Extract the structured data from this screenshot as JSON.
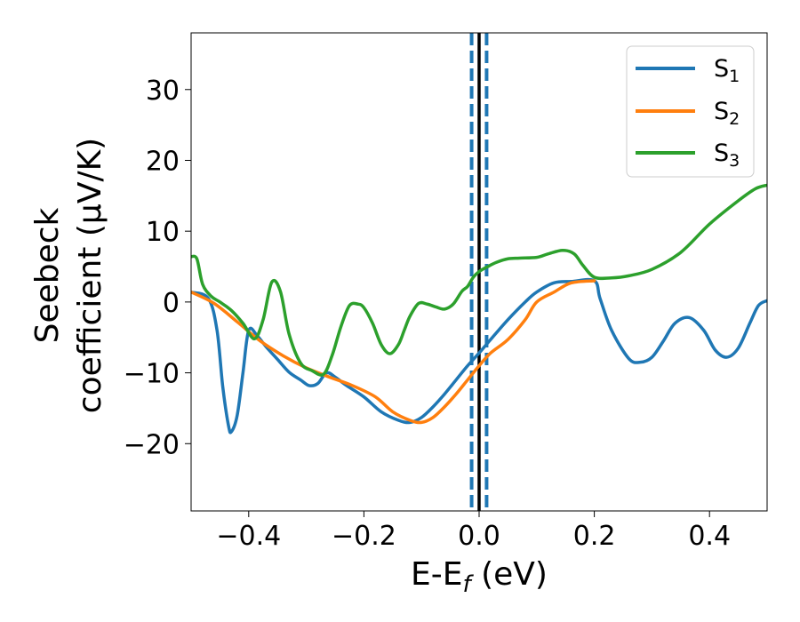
{
  "chart_data": {
    "type": "line",
    "xlabel": {
      "base": "E-E",
      "sub": "f",
      "unit": " (eV)"
    },
    "ylabel": {
      "line1": "Seebeck",
      "line2": "coefficient  (μV/K)"
    },
    "xlim": [
      -0.5,
      0.5
    ],
    "ylim": [
      -29.5,
      38
    ],
    "xticks": [
      -0.4,
      -0.2,
      0.0,
      0.2,
      0.4
    ],
    "xtick_labels": [
      "−0.4",
      "−0.2",
      "0.0",
      "0.2",
      "0.4"
    ],
    "yticks": [
      -20,
      -10,
      0,
      10,
      20,
      30
    ],
    "ytick_labels": [
      "−20",
      "−10",
      "0",
      "10",
      "20",
      "30"
    ],
    "grid": false,
    "legend_position": "top-right",
    "vlines": [
      {
        "x": 0.0,
        "color": "#000000",
        "style": "solid"
      },
      {
        "x": -0.013,
        "color": "#1f77b4",
        "style": "dashed"
      },
      {
        "x": 0.013,
        "color": "#1f77b4",
        "style": "dashed"
      }
    ],
    "series": [
      {
        "name": "S",
        "sub": "1",
        "color": "#1f77b4",
        "x": [
          -0.5,
          -0.47,
          -0.455,
          -0.445,
          -0.435,
          -0.43,
          -0.42,
          -0.41,
          -0.4,
          -0.385,
          -0.37,
          -0.35,
          -0.33,
          -0.31,
          -0.295,
          -0.28,
          -0.265,
          -0.25,
          -0.23,
          -0.2,
          -0.17,
          -0.14,
          -0.12,
          -0.1,
          -0.08,
          -0.06,
          -0.04,
          -0.02,
          0.0,
          0.02,
          0.05,
          0.08,
          0.1,
          0.13,
          0.16,
          0.2,
          0.21,
          0.23,
          0.26,
          0.28,
          0.3,
          0.32,
          0.34,
          0.365,
          0.39,
          0.41,
          0.43,
          0.45,
          0.47,
          0.485,
          0.5
        ],
        "y": [
          1.4,
          0.5,
          -4,
          -12,
          -17.5,
          -18.3,
          -16,
          -10,
          -4,
          -4.8,
          -6.3,
          -8.1,
          -9.9,
          -11,
          -11.8,
          -11.5,
          -10,
          -10.6,
          -11.8,
          -13.4,
          -15.5,
          -16.7,
          -17,
          -16.3,
          -14.8,
          -13,
          -11,
          -9,
          -7.2,
          -5.3,
          -2.5,
          0,
          1.4,
          2.7,
          2.9,
          3.0,
          0.5,
          -4,
          -8,
          -8.5,
          -7.8,
          -5.5,
          -3,
          -2.2,
          -4,
          -6.8,
          -7.8,
          -6.5,
          -3,
          -0.5,
          0.2
        ]
      },
      {
        "name": "S",
        "sub": "2",
        "color": "#ff7f0e",
        "x": [
          -0.5,
          -0.46,
          -0.42,
          -0.38,
          -0.34,
          -0.3,
          -0.26,
          -0.22,
          -0.18,
          -0.15,
          -0.12,
          -0.1,
          -0.08,
          -0.06,
          -0.04,
          -0.02,
          0.0,
          0.02,
          0.05,
          0.08,
          0.1,
          0.13,
          0.16,
          0.2
        ],
        "y": [
          1.4,
          -0.2,
          -2.8,
          -5.5,
          -7.6,
          -9.3,
          -10.6,
          -11.8,
          -13.4,
          -15.5,
          -16.7,
          -17,
          -16.3,
          -14.8,
          -13,
          -11,
          -9,
          -7.2,
          -5.3,
          -2.5,
          0,
          1.4,
          2.7,
          3.0
        ]
      },
      {
        "name": "S",
        "sub": "3",
        "color": "#2ca02c",
        "x": [
          -0.5,
          -0.49,
          -0.48,
          -0.465,
          -0.45,
          -0.43,
          -0.41,
          -0.39,
          -0.375,
          -0.36,
          -0.345,
          -0.33,
          -0.31,
          -0.29,
          -0.27,
          -0.255,
          -0.24,
          -0.225,
          -0.21,
          -0.2,
          -0.185,
          -0.17,
          -0.155,
          -0.14,
          -0.13,
          -0.12,
          -0.105,
          -0.09,
          -0.075,
          -0.06,
          -0.045,
          -0.03,
          -0.02,
          -0.01,
          0.0,
          0.015,
          0.03,
          0.05,
          0.07,
          0.1,
          0.12,
          0.145,
          0.165,
          0.18,
          0.2,
          0.23,
          0.26,
          0.3,
          0.35,
          0.4,
          0.45,
          0.48,
          0.5
        ],
        "y": [
          6.4,
          6.1,
          2.5,
          0.8,
          0,
          -1.2,
          -3,
          -5.2,
          -2.5,
          2.8,
          1.5,
          -4.5,
          -8.6,
          -9.7,
          -10.2,
          -7.5,
          -3.5,
          -0.5,
          -0.3,
          -0.8,
          -3,
          -6,
          -7.3,
          -6,
          -4,
          -2,
          -0.2,
          -0.3,
          -0.7,
          -1,
          -0.3,
          1.5,
          2.2,
          3.5,
          4.3,
          5,
          5.6,
          6.1,
          6.2,
          6.3,
          6.8,
          7.3,
          6.8,
          5.2,
          3.5,
          3.4,
          3.7,
          4.6,
          7,
          11,
          14.3,
          16,
          16.5
        ]
      }
    ]
  }
}
